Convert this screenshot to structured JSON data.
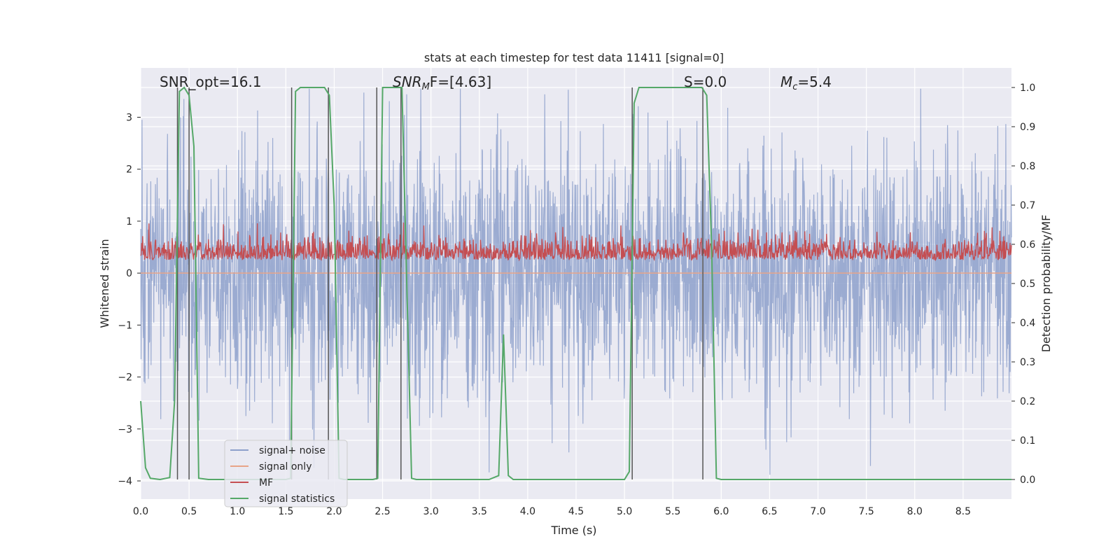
{
  "chart_data": {
    "type": "line",
    "title": "stats at each timestep for test data 11411 [signal=0]",
    "xlabel": "Time (s)",
    "ylabel_left": "Whitened strain",
    "ylabel_right": "Detection probability/MF",
    "xlim": [
      0,
      9.0
    ],
    "ylim_left": [
      -4.35,
      3.95
    ],
    "ylim_right": [
      -0.05,
      1.05
    ],
    "x_ticks": [
      "0.0",
      "0.5",
      "1.0",
      "1.5",
      "2.0",
      "2.5",
      "3.0",
      "3.5",
      "4.0",
      "4.5",
      "5.0",
      "5.5",
      "6.0",
      "6.5",
      "7.0",
      "7.5",
      "8.0",
      "8.5"
    ],
    "y_ticks_left": [
      "3",
      "2",
      "1",
      "0",
      "−1",
      "−2",
      "−3",
      "−4"
    ],
    "y_ticks_right": [
      "1.0",
      "0.9",
      "0.8",
      "0.7",
      "0.6",
      "0.5",
      "0.4",
      "0.3",
      "0.2",
      "0.1",
      "0.0"
    ],
    "grid": true,
    "background": "#eaeaf2",
    "annotations": {
      "snr_opt": "SNR_opt=16.1",
      "snr_mf_base": "SNR",
      "snr_mf_sub": "M",
      "snr_mf_rest": "F=[4.63]",
      "s_val": "S=0.0",
      "mc_base": "M",
      "mc_sub": "c",
      "mc_rest": "=5.4"
    },
    "legend": {
      "position": "lower left",
      "entries": [
        {
          "label": "signal+ noise",
          "color": "#8da0cb"
        },
        {
          "label": "signal only",
          "color": "#e8a488"
        },
        {
          "label": "MF",
          "color": "#c44e52"
        },
        {
          "label": "signal statistics",
          "color": "#55a868"
        }
      ]
    },
    "series": [
      {
        "name": "signal+ noise",
        "color": "#8da0cb",
        "description_band": {
          "mean": 0.0,
          "std": 1.2,
          "peak_max": 3.55,
          "trough_min": -4.1
        }
      },
      {
        "name": "signal only",
        "color": "#e8a488",
        "values_constant": 0.0
      },
      {
        "name": "MF",
        "color": "#c44e52",
        "axis": "right",
        "band": {
          "min": 0.52,
          "max": 0.67
        }
      },
      {
        "name": "signal statistics",
        "color": "#55a868",
        "axis": "right",
        "x": [
          0.0,
          0.05,
          0.1,
          0.2,
          0.3,
          0.35,
          0.4,
          0.45,
          0.5,
          0.55,
          0.6,
          0.7,
          0.8,
          1.5,
          1.55,
          1.6,
          1.65,
          1.7,
          1.9,
          1.95,
          2.0,
          2.05,
          2.1,
          2.4,
          2.45,
          2.5,
          2.55,
          2.7,
          2.8,
          2.85,
          2.9,
          3.6,
          3.7,
          3.75,
          3.8,
          3.85,
          3.9,
          5.0,
          5.05,
          5.1,
          5.15,
          5.2,
          5.8,
          5.85,
          5.9,
          5.95,
          6.0,
          6.1,
          9.0
        ],
        "values": [
          0.2,
          0.03,
          0.003,
          0.0,
          0.005,
          0.2,
          0.99,
          1.0,
          0.98,
          0.85,
          0.003,
          0.0,
          0.0,
          0.0,
          0.003,
          0.99,
          1.0,
          1.0,
          1.0,
          0.98,
          0.7,
          0.003,
          0.0,
          0.0,
          0.003,
          1.0,
          1.0,
          1.0,
          0.003,
          0.0,
          0.0,
          0.0,
          0.01,
          0.37,
          0.01,
          0.0,
          0.0,
          0.0,
          0.02,
          0.96,
          1.0,
          1.0,
          1.0,
          0.98,
          0.6,
          0.003,
          0.0,
          0.0,
          0.0
        ]
      }
    ],
    "vertical_lines_x": [
      0.38,
      0.5,
      1.56,
      1.94,
      2.44,
      2.69,
      5.08,
      5.81
    ]
  }
}
